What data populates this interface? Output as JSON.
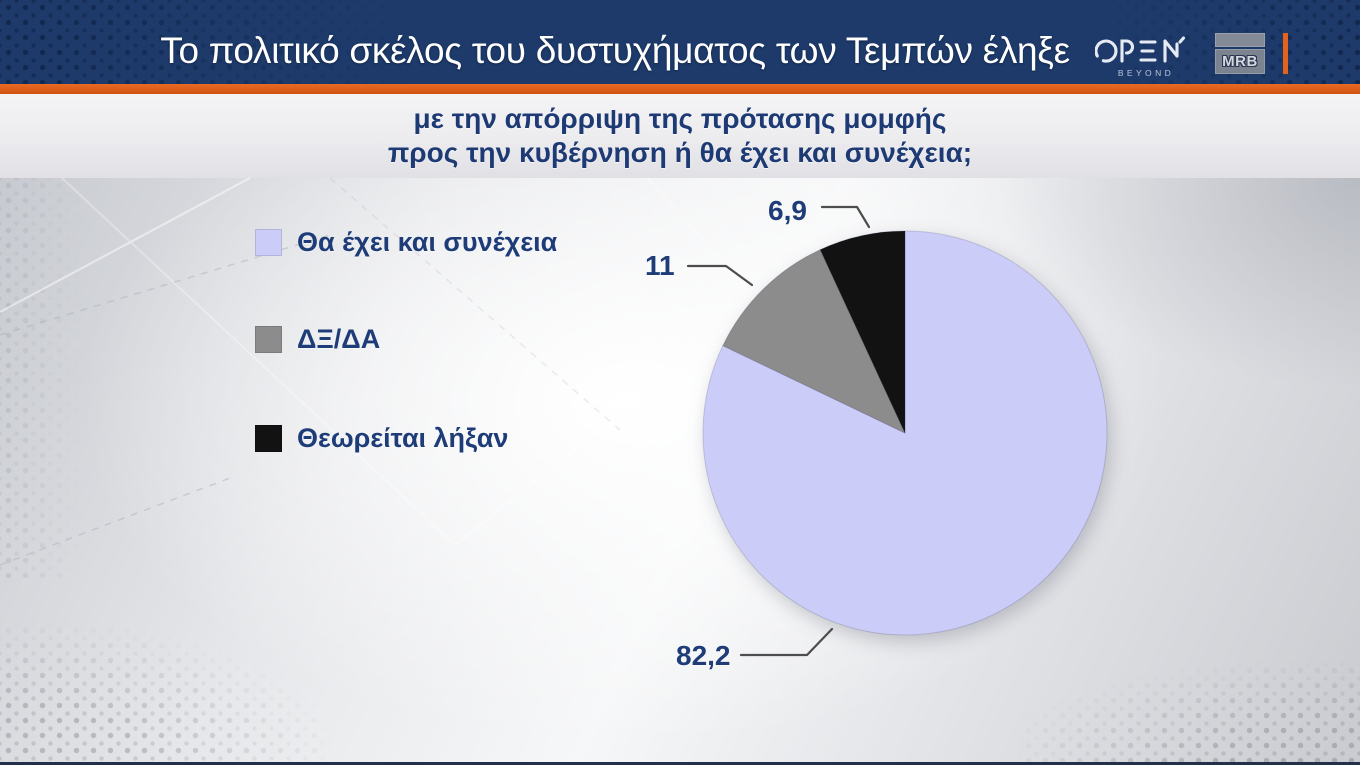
{
  "header": {
    "title": "Το πολιτικό σκέλος του δυστυχήματος των Τεμπών έληξε",
    "open_logo": {
      "name": "OPEN",
      "tagline": "BEYOND"
    },
    "mrb_logo": {
      "label": "MRB"
    }
  },
  "question": {
    "line1": "με την απόρριψη της πρότασης μομφής",
    "line2": "προς την κυβέρνηση ή θα έχει και συνέχεια;"
  },
  "chart_data": {
    "type": "pie",
    "title": "",
    "categories": [
      "Θα έχει και συνέχεια",
      "ΔΞ/ΔΑ",
      "Θεωρείται λήξαν"
    ],
    "values": [
      82.2,
      11,
      6.9
    ],
    "value_labels": [
      "82,2",
      "11",
      "6,9"
    ],
    "colors": [
      "#cbcdf8",
      "#8c8c8c",
      "#121212"
    ],
    "start_angle_deg": 0,
    "direction": "clockwise",
    "legend_position": "left",
    "label_color": "#1e3c78"
  },
  "colors": {
    "header_bg": "#1d3a6b",
    "accent_orange": "#e4621c",
    "question_text": "#1e3a74",
    "label_text": "#1e3c78",
    "banner_bg": "#ececef"
  }
}
